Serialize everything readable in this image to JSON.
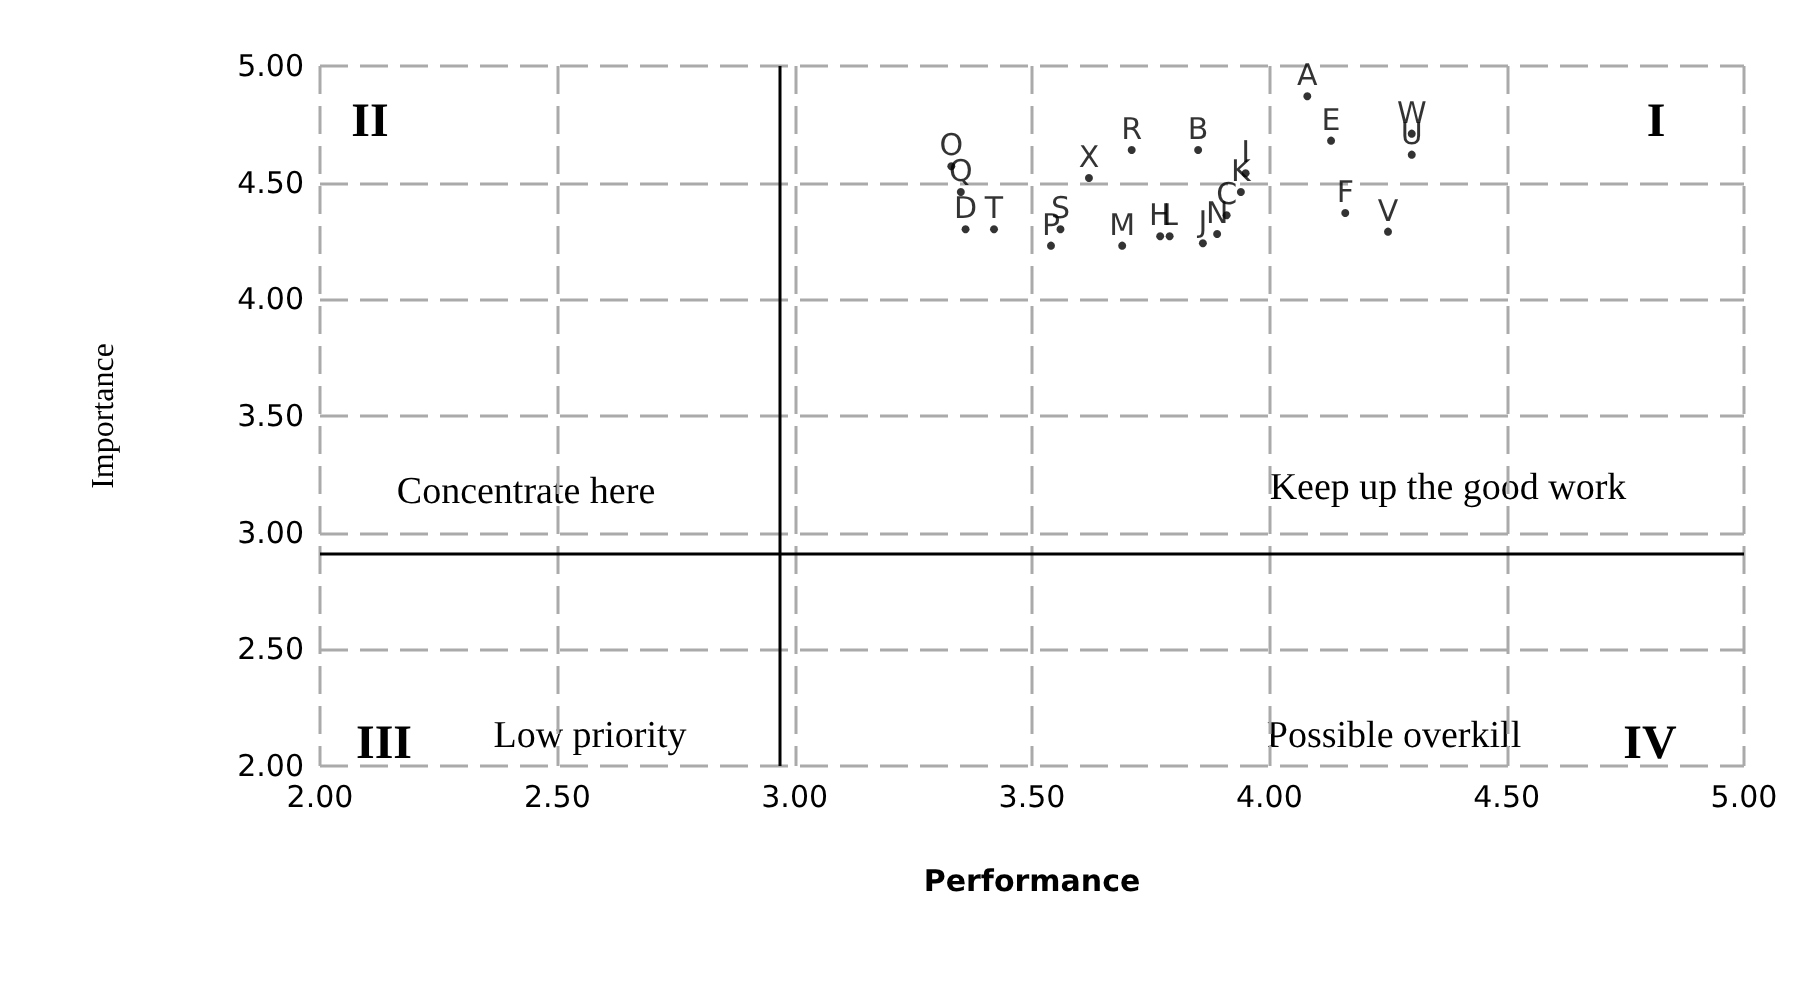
{
  "chart_data": {
    "type": "scatter",
    "xlabel": "Performance",
    "ylabel": "Importance",
    "xlim": [
      2,
      5
    ],
    "ylim": [
      2,
      5
    ],
    "xticks": [
      {
        "value": 2,
        "label": "2.00"
      },
      {
        "value": 2.5,
        "label": "2.50"
      },
      {
        "value": 3,
        "label": "3.00"
      },
      {
        "value": 3.5,
        "label": "3.50"
      },
      {
        "value": 4,
        "label": "4.00"
      },
      {
        "value": 4.5,
        "label": "4.50"
      },
      {
        "value": 5,
        "label": "5.00"
      }
    ],
    "yticks": [
      {
        "value": 2,
        "label": "2.00"
      },
      {
        "value": 2.5,
        "label": "2.50"
      },
      {
        "value": 3,
        "label": "3.00"
      },
      {
        "value": 3.5,
        "label": "3.50"
      },
      {
        "value": 4,
        "label": "4.00"
      },
      {
        "value": 4.5,
        "label": "4.50"
      },
      {
        "value": 5,
        "label": "5.00"
      }
    ],
    "grid": true,
    "legend": false,
    "marker": "circle",
    "ref_lines": [
      {
        "axis": "x",
        "value": 2.97,
        "color": "#000000"
      },
      {
        "axis": "y",
        "value": 2.91,
        "color": "#000000"
      }
    ],
    "annotations": [
      "II",
      "I",
      "Concentrate here",
      "Keep up the good work",
      "III",
      "Low priority",
      "Possible overkill",
      "IV"
    ],
    "series": [
      {
        "name": "A",
        "color": "#000000",
        "x": [
          4.08
        ],
        "values": [
          4.87
        ]
      },
      {
        "name": "B",
        "color": "#000000",
        "x": [
          3.85
        ],
        "values": [
          4.64
        ]
      },
      {
        "name": "C",
        "color": "#000000",
        "x": [
          3.91
        ],
        "values": [
          4.36
        ]
      },
      {
        "name": "D",
        "color": "#000000",
        "x": [
          3.36
        ],
        "values": [
          4.3
        ]
      },
      {
        "name": "E",
        "color": "#000000",
        "x": [
          4.13
        ],
        "values": [
          4.68
        ]
      },
      {
        "name": "F",
        "color": "#000000",
        "x": [
          4.16
        ],
        "values": [
          4.37
        ]
      },
      {
        "name": "H",
        "color": "#000000",
        "x": [
          3.77
        ],
        "values": [
          4.27
        ]
      },
      {
        "name": "I",
        "color": "#000000",
        "x": [
          3.95
        ],
        "values": [
          4.54
        ]
      },
      {
        "name": "J",
        "color": "#000000",
        "x": [
          3.86
        ],
        "values": [
          4.24
        ]
      },
      {
        "name": "K",
        "color": "#000000",
        "x": [
          3.94
        ],
        "values": [
          4.46
        ]
      },
      {
        "name": "L",
        "color": "#000000",
        "x": [
          3.79
        ],
        "values": [
          4.27
        ]
      },
      {
        "name": "M",
        "color": "#000000",
        "x": [
          3.69
        ],
        "values": [
          4.23
        ]
      },
      {
        "name": "N",
        "color": "#000000",
        "x": [
          3.89
        ],
        "values": [
          4.28
        ]
      },
      {
        "name": "O",
        "color": "#000000",
        "x": [
          3.33
        ],
        "values": [
          4.57
        ]
      },
      {
        "name": "P",
        "color": "#000000",
        "x": [
          3.54
        ],
        "values": [
          4.23
        ]
      },
      {
        "name": "Q",
        "color": "#000000",
        "x": [
          3.35
        ],
        "values": [
          4.46
        ]
      },
      {
        "name": "R",
        "color": "#000000",
        "x": [
          3.71
        ],
        "values": [
          4.64
        ]
      },
      {
        "name": "S",
        "color": "#000000",
        "x": [
          3.56
        ],
        "values": [
          4.3
        ]
      },
      {
        "name": "T",
        "color": "#000000",
        "x": [
          3.42
        ],
        "values": [
          4.3
        ]
      },
      {
        "name": "U",
        "color": "#000000",
        "x": [
          4.3
        ],
        "values": [
          4.62
        ]
      },
      {
        "name": "V",
        "color": "#000000",
        "x": [
          4.25
        ],
        "values": [
          4.29
        ]
      },
      {
        "name": "W",
        "color": "#000000",
        "x": [
          4.3
        ],
        "values": [
          4.71
        ]
      },
      {
        "name": "X",
        "color": "#000000",
        "x": [
          3.62
        ],
        "values": [
          4.52
        ]
      }
    ]
  }
}
